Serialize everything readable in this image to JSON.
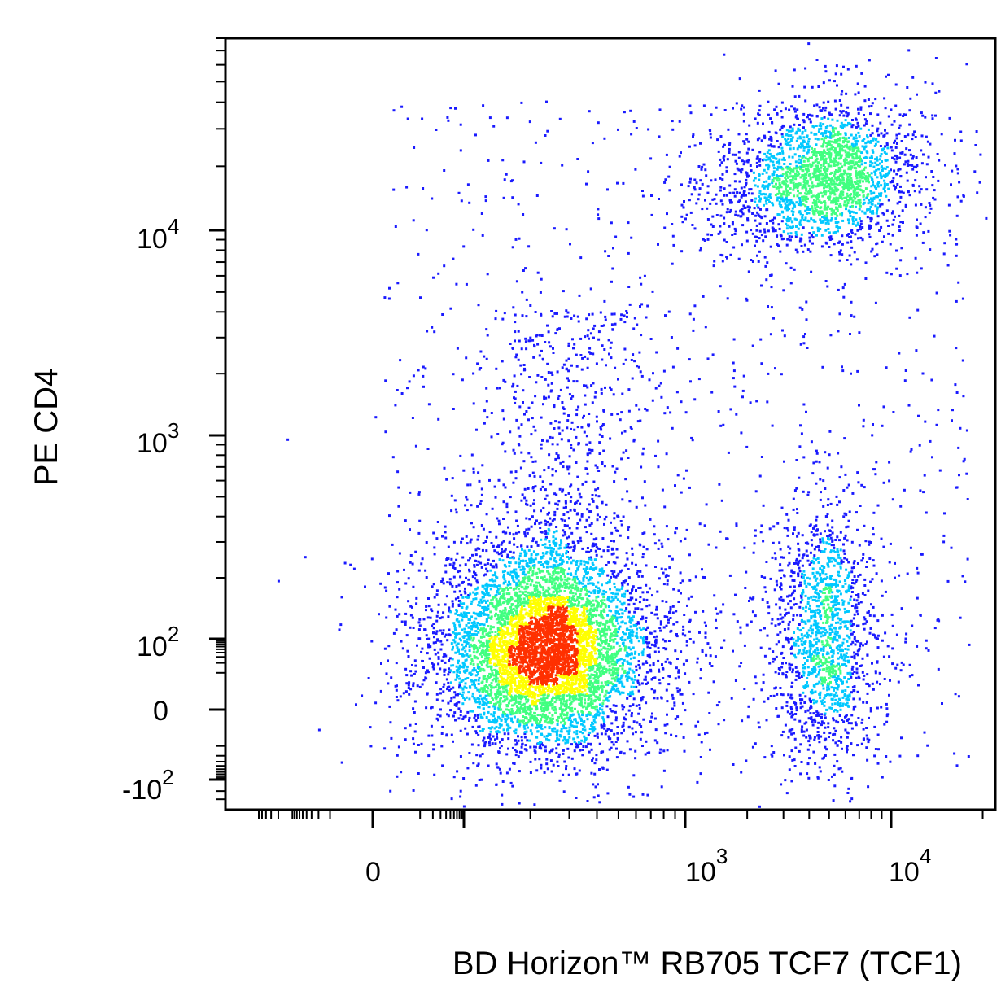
{
  "chart_data": {
    "type": "scatter",
    "title": "",
    "xlabel": "BD Horizon™ RB705 TCF7 (TCF1)",
    "ylabel": "PE CD4",
    "xscale": "biexponential",
    "yscale": "biexponential",
    "xlim": [
      -600,
      22000
    ],
    "ylim": [
      -250,
      80000
    ],
    "x_ticks": [
      {
        "value": 0,
        "base": "0",
        "exp": ""
      },
      {
        "value": 1000,
        "base": "10",
        "exp": "3"
      },
      {
        "value": 10000,
        "base": "10",
        "exp": "4"
      }
    ],
    "y_ticks": [
      {
        "value": -100,
        "base": "-10",
        "exp": "2"
      },
      {
        "value": 0,
        "base": "0",
        "exp": ""
      },
      {
        "value": 100,
        "base": "10",
        "exp": "2"
      },
      {
        "value": 1000,
        "base": "10",
        "exp": "3"
      },
      {
        "value": 10000,
        "base": "10",
        "exp": "4"
      }
    ],
    "color_scale": [
      "#1a1aff",
      "#00c8ff",
      "#40ff80",
      "#ffff00",
      "#ff3000"
    ],
    "populations": [
      {
        "x_center": 230,
        "y_center": 45,
        "density": "high"
      },
      {
        "x_center": 5200,
        "y_center": 19000,
        "density": "high"
      },
      {
        "x_center": 4600,
        "y_center": 60,
        "density": "medium"
      },
      {
        "x_center": 2300,
        "y_center": 14000,
        "density": "low"
      }
    ],
    "grid": false,
    "legend": "none"
  }
}
